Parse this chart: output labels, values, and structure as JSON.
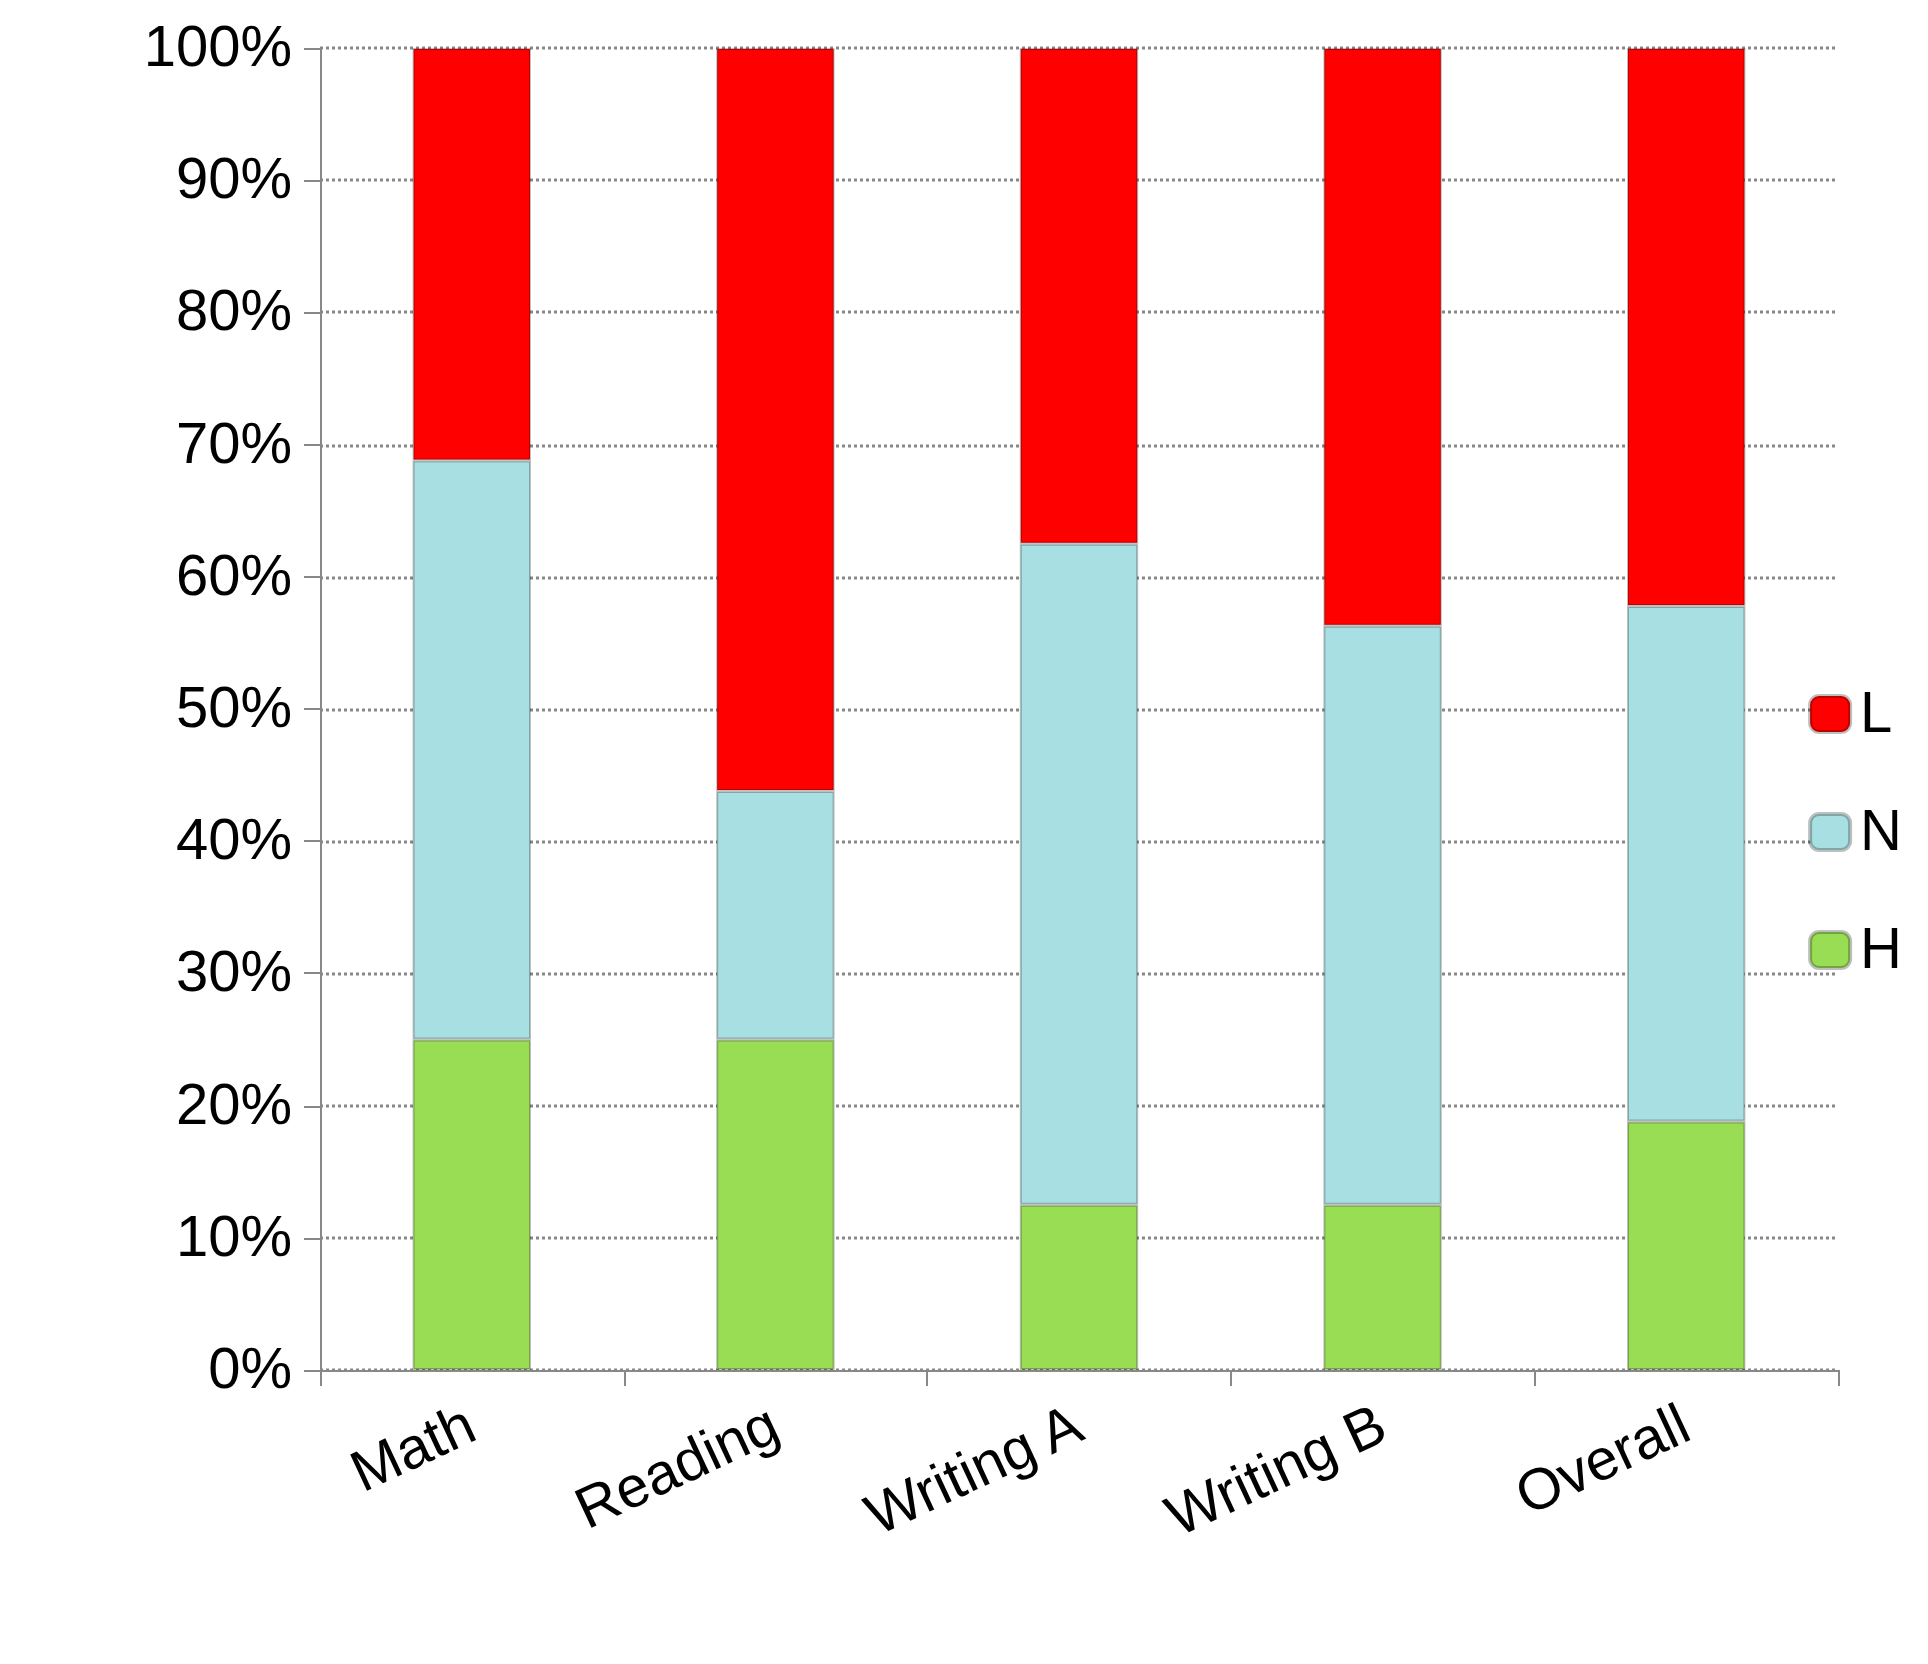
{
  "chart_data": {
    "type": "bar",
    "stacked": true,
    "categories": [
      "Math",
      "Reading",
      "Writing A",
      "Writing B",
      "Overall"
    ],
    "series": [
      {
        "name": "H",
        "color": "#99dd55",
        "values": [
          25,
          25,
          12.5,
          12.5,
          18.8
        ]
      },
      {
        "name": "N",
        "color": "#a8dfe3",
        "values": [
          43.8,
          18.8,
          50,
          43.8,
          39
        ]
      },
      {
        "name": "L",
        "color": "#ff0000",
        "values": [
          31.2,
          56.2,
          37.5,
          43.7,
          42.2
        ]
      }
    ],
    "ylim": [
      0,
      100
    ],
    "yticks": [
      {
        "value": 0,
        "label": "0%"
      },
      {
        "value": 10,
        "label": "10%"
      },
      {
        "value": 20,
        "label": "20%"
      },
      {
        "value": 30,
        "label": "30%"
      },
      {
        "value": 40,
        "label": "40%"
      },
      {
        "value": 50,
        "label": "50%"
      },
      {
        "value": 60,
        "label": "60%"
      },
      {
        "value": 70,
        "label": "70%"
      },
      {
        "value": 80,
        "label": "80%"
      },
      {
        "value": 90,
        "label": "90%"
      },
      {
        "value": 100,
        "label": "100%"
      }
    ],
    "grid": "y",
    "legend": "right"
  }
}
